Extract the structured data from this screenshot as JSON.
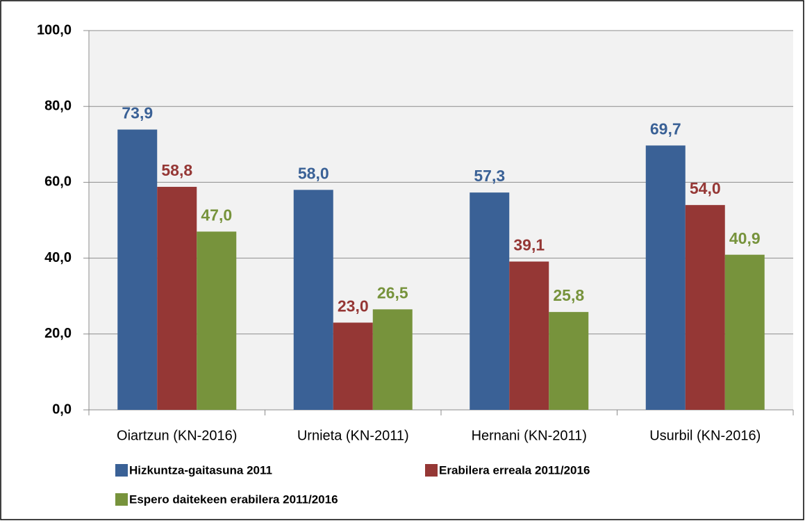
{
  "chart_data": {
    "type": "bar",
    "categories": [
      "Oiartzun (KN-2016)",
      "Urnieta (KN-2011)",
      "Hernani (KN-2011)",
      "Usurbil (KN-2016)"
    ],
    "series": [
      {
        "name": "Hizkuntza-gaitasuna 2011",
        "color": "#3a6196",
        "values": [
          73.9,
          58.0,
          57.3,
          69.7
        ],
        "value_labels": [
          "73,9",
          "58,0",
          "57,3",
          "69,7"
        ]
      },
      {
        "name": "Erabilera erreala 2011/2016",
        "color": "#953735",
        "values": [
          58.8,
          23.0,
          39.1,
          54.0
        ],
        "value_labels": [
          "58,8",
          "23,0",
          "39,1",
          "54,0"
        ]
      },
      {
        "name": "Espero daitekeen erabilera 2011/2016",
        "color": "#77933c",
        "values": [
          47.0,
          26.5,
          25.8,
          40.9
        ],
        "value_labels": [
          "47,0",
          "26,5",
          "25,8",
          "40,9"
        ]
      }
    ],
    "ylim": [
      0,
      100
    ],
    "yticks": [
      {
        "value": 0,
        "label": "0,0"
      },
      {
        "value": 20,
        "label": "20,0"
      },
      {
        "value": 40,
        "label": "40,0"
      },
      {
        "value": 60,
        "label": "60,0"
      },
      {
        "value": 80,
        "label": "80,0"
      },
      {
        "value": 100,
        "label": "100,0"
      }
    ],
    "grid": true
  }
}
